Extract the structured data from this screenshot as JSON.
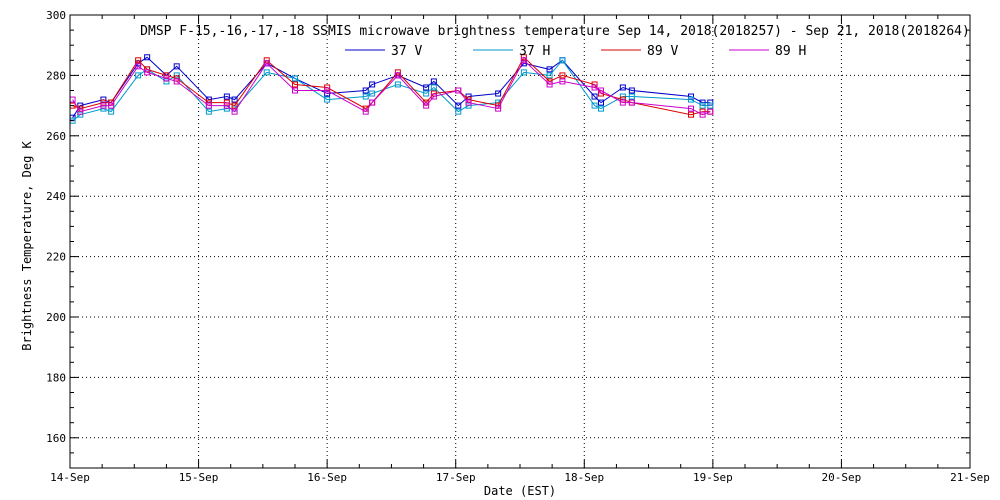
{
  "chart_data": {
    "type": "line",
    "title": "DMSP F-15,-16,-17,-18 SSMIS microwave brightness temperature Sep 14, 2018(2018257) - Sep 21, 2018(2018264)",
    "xlabel": "Date (EST)",
    "ylabel": "Brightness Temperature, Deg K",
    "xlim": [
      0,
      7
    ],
    "ylim": [
      150,
      300
    ],
    "x_tick_labels": [
      "14-Sep",
      "15-Sep",
      "16-Sep",
      "17-Sep",
      "18-Sep",
      "19-Sep",
      "20-Sep",
      "21-Sep"
    ],
    "y_ticks": [
      160,
      180,
      200,
      220,
      240,
      260,
      280,
      300
    ],
    "grid": true,
    "legend_position": "top-center",
    "series": [
      {
        "name": "37 V",
        "color": "#0000cc",
        "points": [
          [
            0.02,
            266
          ],
          [
            0.08,
            270
          ],
          [
            0.26,
            272
          ],
          [
            0.32,
            271
          ],
          [
            0.53,
            284
          ],
          [
            0.6,
            286
          ],
          [
            0.75,
            280
          ],
          [
            0.83,
            283
          ],
          [
            1.08,
            272
          ],
          [
            1.22,
            273
          ],
          [
            1.28,
            272
          ],
          [
            1.53,
            284
          ],
          [
            1.75,
            279
          ],
          [
            2.0,
            274
          ],
          [
            2.3,
            275
          ],
          [
            2.35,
            277
          ],
          [
            2.55,
            280
          ],
          [
            2.77,
            276
          ],
          [
            2.83,
            278
          ],
          [
            3.02,
            270
          ],
          [
            3.1,
            273
          ],
          [
            3.33,
            274
          ],
          [
            3.53,
            284
          ],
          [
            3.73,
            282
          ],
          [
            3.83,
            285
          ],
          [
            4.08,
            273
          ],
          [
            4.13,
            271
          ],
          [
            4.3,
            276
          ],
          [
            4.37,
            275
          ],
          [
            4.83,
            273
          ],
          [
            4.92,
            271
          ],
          [
            4.98,
            271
          ]
        ]
      },
      {
        "name": "37 H",
        "color": "#0099cc",
        "points": [
          [
            0.02,
            265
          ],
          [
            0.08,
            267
          ],
          [
            0.26,
            269
          ],
          [
            0.32,
            268
          ],
          [
            0.53,
            280
          ],
          [
            0.6,
            282
          ],
          [
            0.75,
            278
          ],
          [
            0.83,
            280
          ],
          [
            1.08,
            268
          ],
          [
            1.22,
            269
          ],
          [
            1.28,
            269
          ],
          [
            1.53,
            281
          ],
          [
            1.75,
            279
          ],
          [
            2.0,
            272
          ],
          [
            2.3,
            273
          ],
          [
            2.35,
            274
          ],
          [
            2.55,
            277
          ],
          [
            2.77,
            274
          ],
          [
            2.83,
            276
          ],
          [
            3.02,
            268
          ],
          [
            3.1,
            270
          ],
          [
            3.33,
            271
          ],
          [
            3.53,
            281
          ],
          [
            3.73,
            280
          ],
          [
            3.83,
            285
          ],
          [
            4.08,
            270
          ],
          [
            4.13,
            269
          ],
          [
            4.3,
            273
          ],
          [
            4.37,
            273
          ],
          [
            4.83,
            272
          ],
          [
            4.92,
            270
          ],
          [
            4.98,
            270
          ]
        ]
      },
      {
        "name": "89 V",
        "color": "#dd0000",
        "points": [
          [
            0.02,
            270
          ],
          [
            0.08,
            269
          ],
          [
            0.26,
            271
          ],
          [
            0.32,
            271
          ],
          [
            0.53,
            285
          ],
          [
            0.6,
            282
          ],
          [
            0.75,
            280
          ],
          [
            0.83,
            279
          ],
          [
            1.08,
            271
          ],
          [
            1.22,
            271
          ],
          [
            1.28,
            270
          ],
          [
            1.53,
            285
          ],
          [
            1.75,
            277
          ],
          [
            2.0,
            276
          ],
          [
            2.3,
            269
          ],
          [
            2.35,
            271
          ],
          [
            2.55,
            281
          ],
          [
            2.77,
            271
          ],
          [
            2.83,
            274
          ],
          [
            3.02,
            275
          ],
          [
            3.1,
            272
          ],
          [
            3.33,
            270
          ],
          [
            3.53,
            286
          ],
          [
            3.73,
            278
          ],
          [
            3.83,
            280
          ],
          [
            4.08,
            277
          ],
          [
            4.13,
            274
          ],
          [
            4.3,
            272
          ],
          [
            4.37,
            271
          ],
          [
            4.83,
            267
          ],
          [
            4.92,
            268
          ],
          [
            4.98,
            268
          ]
        ]
      },
      {
        "name": "89 H",
        "color": "#cc00cc",
        "points": [
          [
            0.02,
            272
          ],
          [
            0.08,
            268
          ],
          [
            0.26,
            270
          ],
          [
            0.32,
            270
          ],
          [
            0.53,
            283
          ],
          [
            0.6,
            281
          ],
          [
            0.75,
            279
          ],
          [
            0.83,
            278
          ],
          [
            1.08,
            270
          ],
          [
            1.22,
            270
          ],
          [
            1.28,
            268
          ],
          [
            1.53,
            284
          ],
          [
            1.75,
            275
          ],
          [
            2.0,
            275
          ],
          [
            2.3,
            268
          ],
          [
            2.35,
            271
          ],
          [
            2.55,
            280
          ],
          [
            2.77,
            270
          ],
          [
            2.83,
            273
          ],
          [
            3.02,
            275
          ],
          [
            3.1,
            271
          ],
          [
            3.33,
            269
          ],
          [
            3.53,
            285
          ],
          [
            3.73,
            277
          ],
          [
            3.83,
            278
          ],
          [
            4.08,
            276
          ],
          [
            4.13,
            275
          ],
          [
            4.3,
            271
          ],
          [
            4.37,
            271
          ],
          [
            4.83,
            269
          ],
          [
            4.92,
            267
          ],
          [
            4.98,
            268
          ]
        ]
      }
    ]
  }
}
